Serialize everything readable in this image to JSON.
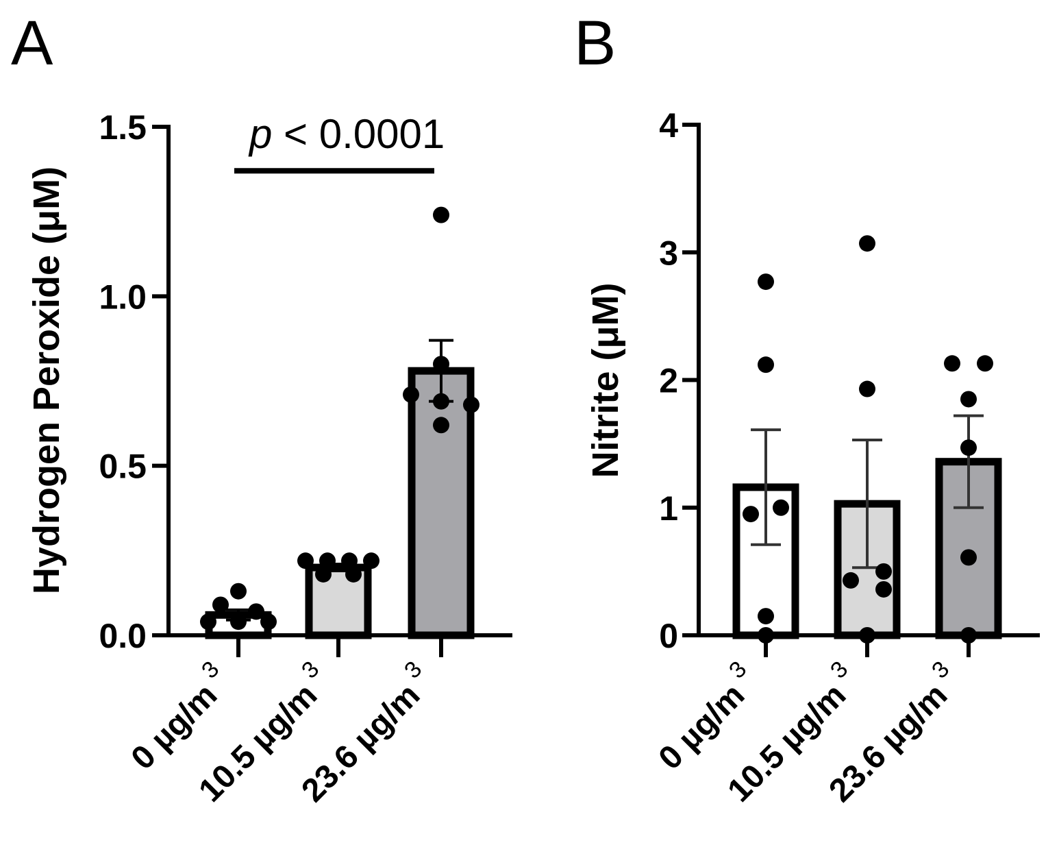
{
  "chart_data": [
    {
      "panel": "A",
      "type": "bar",
      "ylabel": "Hydrogen Peroxide (μM)",
      "ylim": [
        0,
        1.5
      ],
      "yticks": [
        0.0,
        0.5,
        1.0,
        1.5
      ],
      "ytick_labels": [
        "0.0",
        "0.5",
        "1.0",
        "1.5"
      ],
      "categories": [
        {
          "value": "0 µg/m",
          "unit_exp": "3"
        },
        {
          "value": "10.5 µg/m",
          "unit_exp": "3"
        },
        {
          "value": "23.6 µg/m",
          "unit_exp": "3"
        }
      ],
      "means": [
        0.06,
        0.2,
        0.78
      ],
      "sem": [
        0.015,
        0.01,
        0.09
      ],
      "colors": [
        "#ffffff",
        "#d9d9d9",
        "#a6a6aa"
      ],
      "points": [
        [
          0.13,
          0.09,
          0.07,
          0.04,
          0.04,
          0.04
        ],
        [
          0.22,
          0.22,
          0.22,
          0.22,
          0.18,
          0.18
        ],
        [
          1.24,
          0.8,
          0.71,
          0.69,
          0.68,
          0.62
        ]
      ],
      "annotation": {
        "prefix": "p",
        "text": " < 0.0001",
        "from": 0,
        "to": 2,
        "y": 1.37
      }
    },
    {
      "panel": "B",
      "type": "bar",
      "ylabel": "Nitrite (μM)",
      "ylim": [
        0,
        4
      ],
      "yticks": [
        0,
        1,
        2,
        3,
        4
      ],
      "ytick_labels": [
        "0",
        "1",
        "2",
        "3",
        "4"
      ],
      "categories": [
        {
          "value": "0 µg/m",
          "unit_exp": "3"
        },
        {
          "value": "10.5 µg/m",
          "unit_exp": "3"
        },
        {
          "value": "23.6 µg/m",
          "unit_exp": "3"
        }
      ],
      "means": [
        1.16,
        1.03,
        1.36
      ],
      "sem": [
        0.45,
        0.5,
        0.36
      ],
      "colors": [
        "#ffffff",
        "#d9d9d9",
        "#a6a6aa"
      ],
      "points": [
        [
          2.77,
          2.12,
          1.0,
          0.95,
          0.15,
          0.0
        ],
        [
          3.07,
          1.93,
          0.5,
          0.43,
          0.36,
          0.0
        ],
        [
          2.13,
          2.13,
          1.85,
          1.47,
          0.61,
          0.0
        ]
      ]
    }
  ]
}
